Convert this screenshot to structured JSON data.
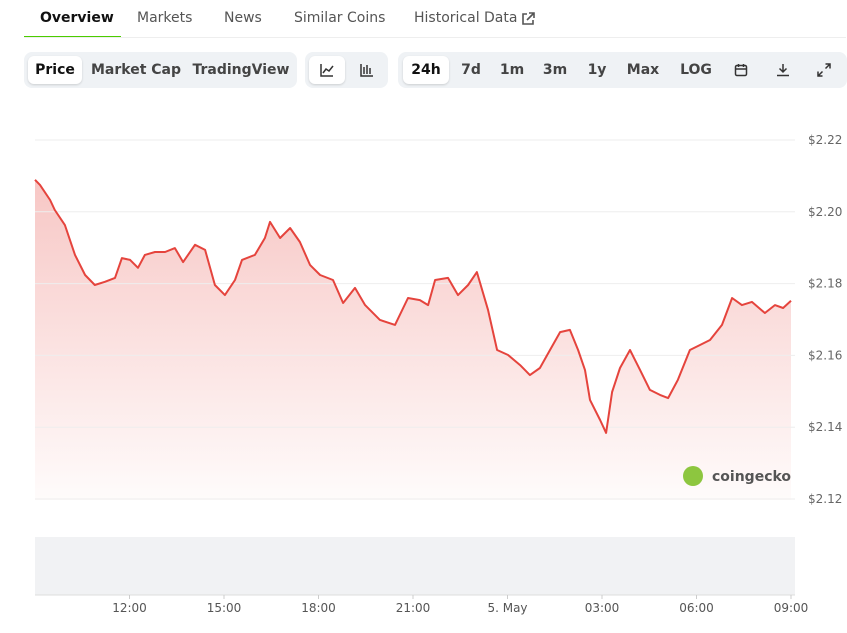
{
  "tabs": [
    "Overview",
    "Markets",
    "News",
    "Similar Coins",
    "Historical Data"
  ],
  "toolbar": {
    "views": [
      "Price",
      "Market Cap",
      "TradingView"
    ],
    "ranges": [
      "24h",
      "7d",
      "1m",
      "3m",
      "1y",
      "Max",
      "LOG"
    ]
  },
  "watermark": "coingecko",
  "chart_data": {
    "type": "line",
    "color": "#e5443d",
    "grid": true,
    "x": [
      0,
      0.16,
      0.48,
      0.63,
      0.95,
      1.27,
      1.59,
      1.9,
      2.22,
      2.54,
      2.76,
      3.02,
      3.27,
      3.49,
      3.81,
      4.13,
      4.44,
      4.7,
      5.08,
      5.4,
      5.71,
      6.03,
      6.35,
      6.57,
      6.98,
      7.3,
      7.46,
      7.78,
      8.1,
      8.41,
      8.73,
      9.05,
      9.46,
      9.78,
      10.16,
      10.48,
      10.95,
      11.43,
      11.84,
      12.22,
      12.48,
      12.7,
      13.11,
      13.43,
      13.75,
      14.03,
      14.38,
      14.67,
      15.02,
      15.4,
      15.71,
      16.03,
      16.35,
      16.67,
      16.98,
      17.24,
      17.46,
      17.62,
      17.94,
      18.13,
      18.32,
      18.57,
      18.89,
      19.21,
      19.52,
      19.84,
      20.1,
      20.41,
      20.79,
      21.11,
      21.43,
      21.81,
      22.13,
      22.44,
      22.76,
      23.17,
      23.49,
      23.75,
      24
    ],
    "values": [
      2.2089,
      2.2075,
      2.2033,
      2.2005,
      2.1963,
      2.188,
      2.1824,
      2.1796,
      2.1805,
      2.1816,
      2.1871,
      2.1866,
      2.1844,
      2.188,
      2.1888,
      2.1888,
      2.1899,
      2.186,
      2.1908,
      2.1894,
      2.1796,
      2.1768,
      2.181,
      2.1866,
      2.188,
      2.1927,
      2.1972,
      2.1927,
      2.1955,
      2.1916,
      2.1852,
      2.1824,
      2.181,
      2.1746,
      2.1788,
      2.174,
      2.1699,
      2.1685,
      2.176,
      2.1754,
      2.174,
      2.181,
      2.1816,
      2.1768,
      2.1796,
      2.1832,
      2.1727,
      2.1615,
      2.1601,
      2.1573,
      2.1545,
      2.1565,
      2.1615,
      2.1665,
      2.1671,
      2.1615,
      2.1559,
      2.1476,
      2.142,
      2.1384,
      2.1498,
      2.1565,
      2.1615,
      2.1559,
      2.1504,
      2.149,
      2.1481,
      2.1532,
      2.1615,
      2.1629,
      2.1643,
      2.1685,
      2.176,
      2.174,
      2.1749,
      2.1718,
      2.174,
      2.1732,
      2.1752
    ],
    "xlim": [
      0,
      24
    ],
    "xticks": [
      {
        "value": 3,
        "label": "12:00"
      },
      {
        "value": 6,
        "label": "15:00"
      },
      {
        "value": 9,
        "label": "18:00"
      },
      {
        "value": 12,
        "label": "21:00"
      },
      {
        "value": 15,
        "label": "5. May"
      },
      {
        "value": 18,
        "label": "03:00"
      },
      {
        "value": 21,
        "label": "06:00"
      },
      {
        "value": 24,
        "label": "09:00"
      }
    ],
    "ylim": [
      2.12,
      2.22
    ],
    "yticks": [
      {
        "value": 2.12,
        "label": "$2.12"
      },
      {
        "value": 2.14,
        "label": "$2.14"
      },
      {
        "value": 2.16,
        "label": "$2.16"
      },
      {
        "value": 2.18,
        "label": "$2.18"
      },
      {
        "value": 2.2,
        "label": "$2.20"
      },
      {
        "value": 2.22,
        "label": "$2.22"
      }
    ]
  }
}
